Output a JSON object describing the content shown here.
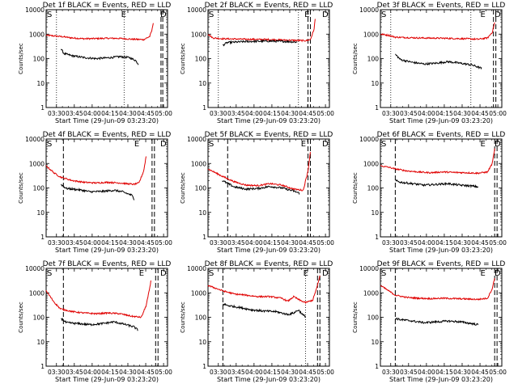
{
  "chart_data": {
    "type": "line",
    "panel_titles": [
      "Det 1f BLACK = Events, RED = LLD",
      "Det 2f BLACK = Events, RED = LLD",
      "Det 3f BLACK = Events, RED = LLD",
      "Det 4f BLACK = Events, RED = LLD",
      "Det 5f BLACK = Events, RED = LLD",
      "Det 6f BLACK = Events, RED = LLD",
      "Det 7f BLACK = Events, RED = LLD",
      "Det 8f BLACK = Events, RED = LLD",
      "Det 9f BLACK = Events, RED = LLD"
    ],
    "xlabel": "Start Time (29-Jun-09 03:23:20)",
    "ylabel": "Counts/sec",
    "x_tick_labels": [
      "03:30",
      "03:45",
      "04:00",
      "04:15",
      "04:30",
      "04:45",
      "05:00"
    ],
    "y_tick_labels": [
      "1",
      "10",
      "100",
      "1000",
      "10000"
    ],
    "y_scale": "log",
    "ylim": [
      1,
      10000
    ],
    "xlim_minutes_from_start": [
      -2,
      100
    ],
    "markers": {
      "S": "S",
      "E": "E",
      "D": "D"
    },
    "series_colors": {
      "events": "#000000",
      "lld": "#e00000"
    },
    "panels": [
      {
        "events": [
          [
            10.5,
            250
          ],
          [
            13,
            160
          ],
          [
            20,
            130
          ],
          [
            30,
            110
          ],
          [
            40,
            100
          ],
          [
            50,
            108
          ],
          [
            60,
            120
          ],
          [
            68,
            110
          ],
          [
            73,
            85
          ],
          [
            75.5,
            60
          ]
        ],
        "lld": [
          [
            -2,
            900
          ],
          [
            10.5,
            800
          ],
          [
            20,
            700
          ],
          [
            30,
            650
          ],
          [
            40,
            660
          ],
          [
            50,
            680
          ],
          [
            60,
            670
          ],
          [
            70,
            620
          ],
          [
            80,
            600
          ],
          [
            85,
            800
          ],
          [
            87,
            1500
          ],
          [
            88,
            3000
          ]
        ],
        "vlines_dotted": [
          6.7,
          63.5
        ],
        "vlines_dashed": [
          94.5,
          96
        ],
        "marker_E_x": 61
      },
      {
        "events": [
          [
            10.5,
            350
          ],
          [
            14,
            450
          ],
          [
            30,
            500
          ],
          [
            50,
            520
          ],
          [
            65,
            500
          ],
          [
            73,
            470
          ]
        ],
        "lld": [
          [
            -2,
            1000
          ],
          [
            2,
            700
          ],
          [
            10,
            650
          ],
          [
            30,
            620
          ],
          [
            50,
            600
          ],
          [
            70,
            560
          ],
          [
            80,
            540
          ],
          [
            84,
            600
          ],
          [
            87,
            1500
          ],
          [
            88,
            4000
          ]
        ],
        "vlines_dotted": [
          6.7,
          74
        ],
        "vlines_dashed": [
          82,
          84
        ],
        "marker_E_x": 79
      },
      {
        "events": [
          [
            10.5,
            150
          ],
          [
            15,
            90
          ],
          [
            25,
            70
          ],
          [
            35,
            60
          ],
          [
            45,
            65
          ],
          [
            55,
            75
          ],
          [
            65,
            65
          ],
          [
            75,
            55
          ],
          [
            83,
            40
          ]
        ],
        "lld": [
          [
            -2,
            1000
          ],
          [
            5,
            900
          ],
          [
            10.5,
            750
          ],
          [
            30,
            700
          ],
          [
            50,
            680
          ],
          [
            70,
            650
          ],
          [
            80,
            620
          ],
          [
            88,
            700
          ],
          [
            92,
            1200
          ],
          [
            94,
            3000
          ]
        ],
        "vlines_dotted": [
          6.7,
          74
        ],
        "vlines_dashed": [
          93,
          95
        ],
        "marker_E_x": 82
      },
      {
        "events": [
          [
            10.5,
            140
          ],
          [
            15,
            95
          ],
          [
            25,
            85
          ],
          [
            35,
            70
          ],
          [
            45,
            72
          ],
          [
            55,
            80
          ],
          [
            62,
            70
          ],
          [
            70,
            50
          ],
          [
            72,
            35
          ]
        ],
        "lld": [
          [
            -2,
            800
          ],
          [
            5,
            400
          ],
          [
            10,
            280
          ],
          [
            20,
            200
          ],
          [
            30,
            170
          ],
          [
            40,
            160
          ],
          [
            50,
            170
          ],
          [
            60,
            160
          ],
          [
            65,
            150
          ],
          [
            72,
            140
          ],
          [
            76,
            160
          ],
          [
            80,
            500
          ],
          [
            82,
            2000
          ]
        ],
        "vlines_dotted": [],
        "vlines_dashed": [
          12.5,
          87,
          89
        ],
        "marker_E_x": 72
      },
      {
        "events": [
          [
            10,
            200
          ],
          [
            20,
            110
          ],
          [
            30,
            90
          ],
          [
            40,
            95
          ],
          [
            50,
            115
          ],
          [
            60,
            100
          ],
          [
            70,
            75
          ],
          [
            75,
            60
          ]
        ],
        "lld": [
          [
            -2,
            600
          ],
          [
            10,
            300
          ],
          [
            20,
            180
          ],
          [
            30,
            130
          ],
          [
            40,
            125
          ],
          [
            50,
            150
          ],
          [
            60,
            130
          ],
          [
            70,
            90
          ],
          [
            78,
            80
          ],
          [
            82,
            500
          ],
          [
            84,
            3000
          ]
        ],
        "vlines_dotted": [],
        "vlines_dashed": [
          14.5,
          82,
          84
        ],
        "marker_E_x": 76
      },
      {
        "events": [
          [
            10.5,
            200
          ],
          [
            15,
            170
          ],
          [
            25,
            150
          ],
          [
            35,
            130
          ],
          [
            45,
            140
          ],
          [
            55,
            150
          ],
          [
            65,
            130
          ],
          [
            75,
            120
          ],
          [
            80,
            110
          ]
        ],
        "lld": [
          [
            -2,
            800
          ],
          [
            5,
            700
          ],
          [
            10.5,
            600
          ],
          [
            20,
            500
          ],
          [
            30,
            450
          ],
          [
            40,
            420
          ],
          [
            50,
            450
          ],
          [
            60,
            430
          ],
          [
            70,
            420
          ],
          [
            80,
            400
          ],
          [
            88,
            450
          ],
          [
            92,
            1000
          ],
          [
            94,
            4000
          ]
        ],
        "vlines_dotted": [],
        "vlines_dashed": [
          10.5,
          94,
          96
        ],
        "marker_E_x": 82
      },
      {
        "events": [
          [
            10.5,
            90
          ],
          [
            15,
            60
          ],
          [
            25,
            55
          ],
          [
            35,
            50
          ],
          [
            45,
            55
          ],
          [
            55,
            65
          ],
          [
            65,
            50
          ],
          [
            72,
            40
          ],
          [
            75,
            30
          ]
        ],
        "lld": [
          [
            -2,
            1200
          ],
          [
            5,
            400
          ],
          [
            10,
            220
          ],
          [
            20,
            170
          ],
          [
            30,
            150
          ],
          [
            40,
            140
          ],
          [
            50,
            150
          ],
          [
            60,
            140
          ],
          [
            70,
            110
          ],
          [
            78,
            100
          ],
          [
            82,
            300
          ],
          [
            85,
            1500
          ],
          [
            86,
            3000
          ]
        ],
        "vlines_dotted": [],
        "vlines_dashed": [
          12.5,
          90,
          92
        ],
        "marker_E_x": 76
      },
      {
        "events": [
          [
            10.5,
            350
          ],
          [
            15,
            300
          ],
          [
            25,
            250
          ],
          [
            35,
            200
          ],
          [
            45,
            180
          ],
          [
            55,
            170
          ],
          [
            65,
            130
          ],
          [
            70,
            150
          ],
          [
            74,
            200
          ],
          [
            78,
            120
          ],
          [
            80,
            110
          ]
        ],
        "lld": [
          [
            -2,
            2000
          ],
          [
            5,
            1500
          ],
          [
            10.5,
            1200
          ],
          [
            20,
            900
          ],
          [
            30,
            800
          ],
          [
            40,
            700
          ],
          [
            50,
            700
          ],
          [
            60,
            600
          ],
          [
            65,
            450
          ],
          [
            70,
            700
          ],
          [
            75,
            500
          ],
          [
            80,
            400
          ],
          [
            86,
            500
          ],
          [
            90,
            2000
          ],
          [
            92,
            5000
          ]
        ],
        "vlines_dotted": [
          80
        ],
        "vlines_dashed": [
          10.5,
          90,
          92
        ],
        "marker_E_x": 78
      },
      {
        "events": [
          [
            10.5,
            90
          ],
          [
            15,
            80
          ],
          [
            25,
            70
          ],
          [
            35,
            60
          ],
          [
            45,
            65
          ],
          [
            55,
            70
          ],
          [
            65,
            65
          ],
          [
            75,
            55
          ],
          [
            80,
            50
          ]
        ],
        "lld": [
          [
            -2,
            2000
          ],
          [
            5,
            1200
          ],
          [
            10.5,
            800
          ],
          [
            20,
            650
          ],
          [
            30,
            600
          ],
          [
            40,
            580
          ],
          [
            50,
            600
          ],
          [
            60,
            580
          ],
          [
            70,
            560
          ],
          [
            80,
            540
          ],
          [
            88,
            600
          ],
          [
            92,
            1500
          ],
          [
            94,
            4000
          ]
        ],
        "vlines_dotted": [],
        "vlines_dashed": [
          10.5,
          94,
          96
        ],
        "marker_E_x": 82
      }
    ]
  }
}
